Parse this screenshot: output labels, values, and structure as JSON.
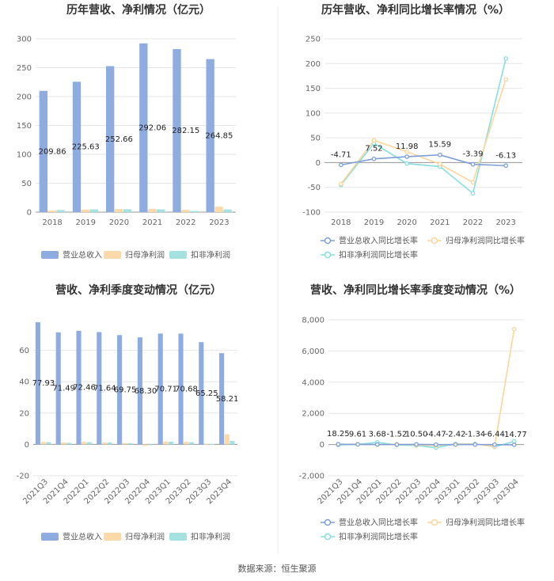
{
  "source_label": "数据来源：恒生聚源",
  "colors": {
    "revenue": "#8eacdf",
    "net_profit": "#fbd9a8",
    "deducted_profit": "#a4e2e2",
    "revenue_line": "#7e9fd8",
    "net_profit_line": "#fcd59b",
    "deducted_profit_line": "#87dede",
    "grid": "#e6e6e6",
    "axis": "#999999"
  },
  "chart_data": [
    {
      "id": "annual_bar",
      "type": "bar",
      "title": "历年营收、净利情况（亿元）",
      "categories": [
        "2018",
        "2019",
        "2020",
        "2021",
        "2022",
        "2023"
      ],
      "ylim": [
        0,
        300
      ],
      "yticks": [
        0,
        50,
        100,
        150,
        200,
        250,
        300
      ],
      "series": [
        {
          "name": "营业总收入",
          "values": [
            209.86,
            225.63,
            252.66,
            292.06,
            282.15,
            264.85
          ],
          "labels": [
            "209.86",
            "225.63",
            "252.66",
            "292.06",
            "282.15",
            "264.85"
          ]
        },
        {
          "name": "归母净利润",
          "values": [
            2.8,
            4.4,
            5.4,
            5.8,
            4.1,
            9.4
          ]
        },
        {
          "name": "扣非净利润",
          "values": [
            3.6,
            4.8,
            5.0,
            4.8,
            2.0,
            4.7
          ]
        }
      ]
    },
    {
      "id": "annual_line",
      "type": "line",
      "title": "历年营收、净利同比增长率情况（%）",
      "categories": [
        "2018",
        "2019",
        "2020",
        "2021",
        "2022",
        "2023"
      ],
      "ylim": [
        -100,
        250
      ],
      "yticks": [
        -100,
        -50,
        0,
        50,
        100,
        150,
        200,
        250
      ],
      "series": [
        {
          "name": "营业总收入同比增长率",
          "values": [
            -4.71,
            7.52,
            11.98,
            15.59,
            -3.39,
            -6.13
          ],
          "labels": [
            "-4.71",
            "7.52",
            "11.98",
            "15.59",
            "-3.39",
            "-6.13"
          ]
        },
        {
          "name": "归母净利润同比增长率",
          "values": [
            -43,
            45,
            22,
            -3,
            -40,
            168
          ]
        },
        {
          "name": "扣非净利润同比增长率",
          "values": [
            -45,
            39,
            -2,
            -8,
            -62,
            210
          ]
        }
      ]
    },
    {
      "id": "quarterly_bar",
      "type": "bar",
      "title": "营收、净利季度变动情况（亿元）",
      "categories": [
        "2021Q3",
        "2021Q4",
        "2022Q1",
        "2022Q2",
        "2022Q3",
        "2022Q4",
        "2023Q1",
        "2023Q2",
        "2023Q3",
        "2023Q4"
      ],
      "ylim": [
        -20,
        80
      ],
      "yticks": [
        -20,
        0,
        20,
        40,
        60
      ],
      "series": [
        {
          "name": "营业总收入",
          "values": [
            77.93,
            71.49,
            72.46,
            71.64,
            69.75,
            68.3,
            70.71,
            70.68,
            65.25,
            58.21
          ],
          "labels": [
            "77.93",
            "71.49",
            "72.46",
            "71.64",
            "69.75",
            "68.30",
            "70.71",
            "70.68",
            "65.25",
            "58.21"
          ]
        },
        {
          "name": "归母净利润",
          "values": [
            1.6,
            1.2,
            1.6,
            1.2,
            0.9,
            -0.9,
            1.8,
            1.6,
            0.3,
            6.5
          ]
        },
        {
          "name": "扣非净利润",
          "values": [
            1.4,
            1.0,
            1.4,
            1.2,
            0.8,
            -0.5,
            1.7,
            1.4,
            0.2,
            2.2
          ]
        }
      ]
    },
    {
      "id": "quarterly_line",
      "type": "line",
      "title": "营收、净利同比增长率季度变动情况（%）",
      "categories": [
        "2021Q3",
        "2021Q4",
        "2022Q1",
        "2022Q2",
        "2022Q3",
        "2022Q4",
        "2023Q1",
        "2023Q2",
        "2023Q3",
        "2023Q4"
      ],
      "ylim": [
        -2000,
        8000
      ],
      "yticks": [
        -2000,
        0,
        2000,
        4000,
        6000,
        8000
      ],
      "ytick_labels": [
        "-2,000",
        "0",
        "2,000",
        "4,000",
        "6,000",
        "8,000"
      ],
      "series": [
        {
          "name": "营业总收入同比增长率",
          "values": [
            18.25,
            9.61,
            3.68,
            -1.52,
            10.5,
            -4.47,
            -2.42,
            -1.34,
            -6.44,
            -14.77
          ],
          "labels": [
            "18.25",
            "9.61",
            "3.68",
            "-1.52",
            "10.50",
            "-4.47",
            "-2.42",
            "-1.34",
            "-6.44",
            "-14.77"
          ]
        },
        {
          "name": "归母净利润同比增长率",
          "values": [
            10,
            20,
            -10,
            15,
            -30,
            -60,
            20,
            30,
            -120,
            7400
          ]
        },
        {
          "name": "扣非净利润同比增长率",
          "values": [
            -30,
            10,
            140,
            -20,
            -60,
            -200,
            40,
            50,
            -150,
            200
          ]
        }
      ]
    }
  ]
}
